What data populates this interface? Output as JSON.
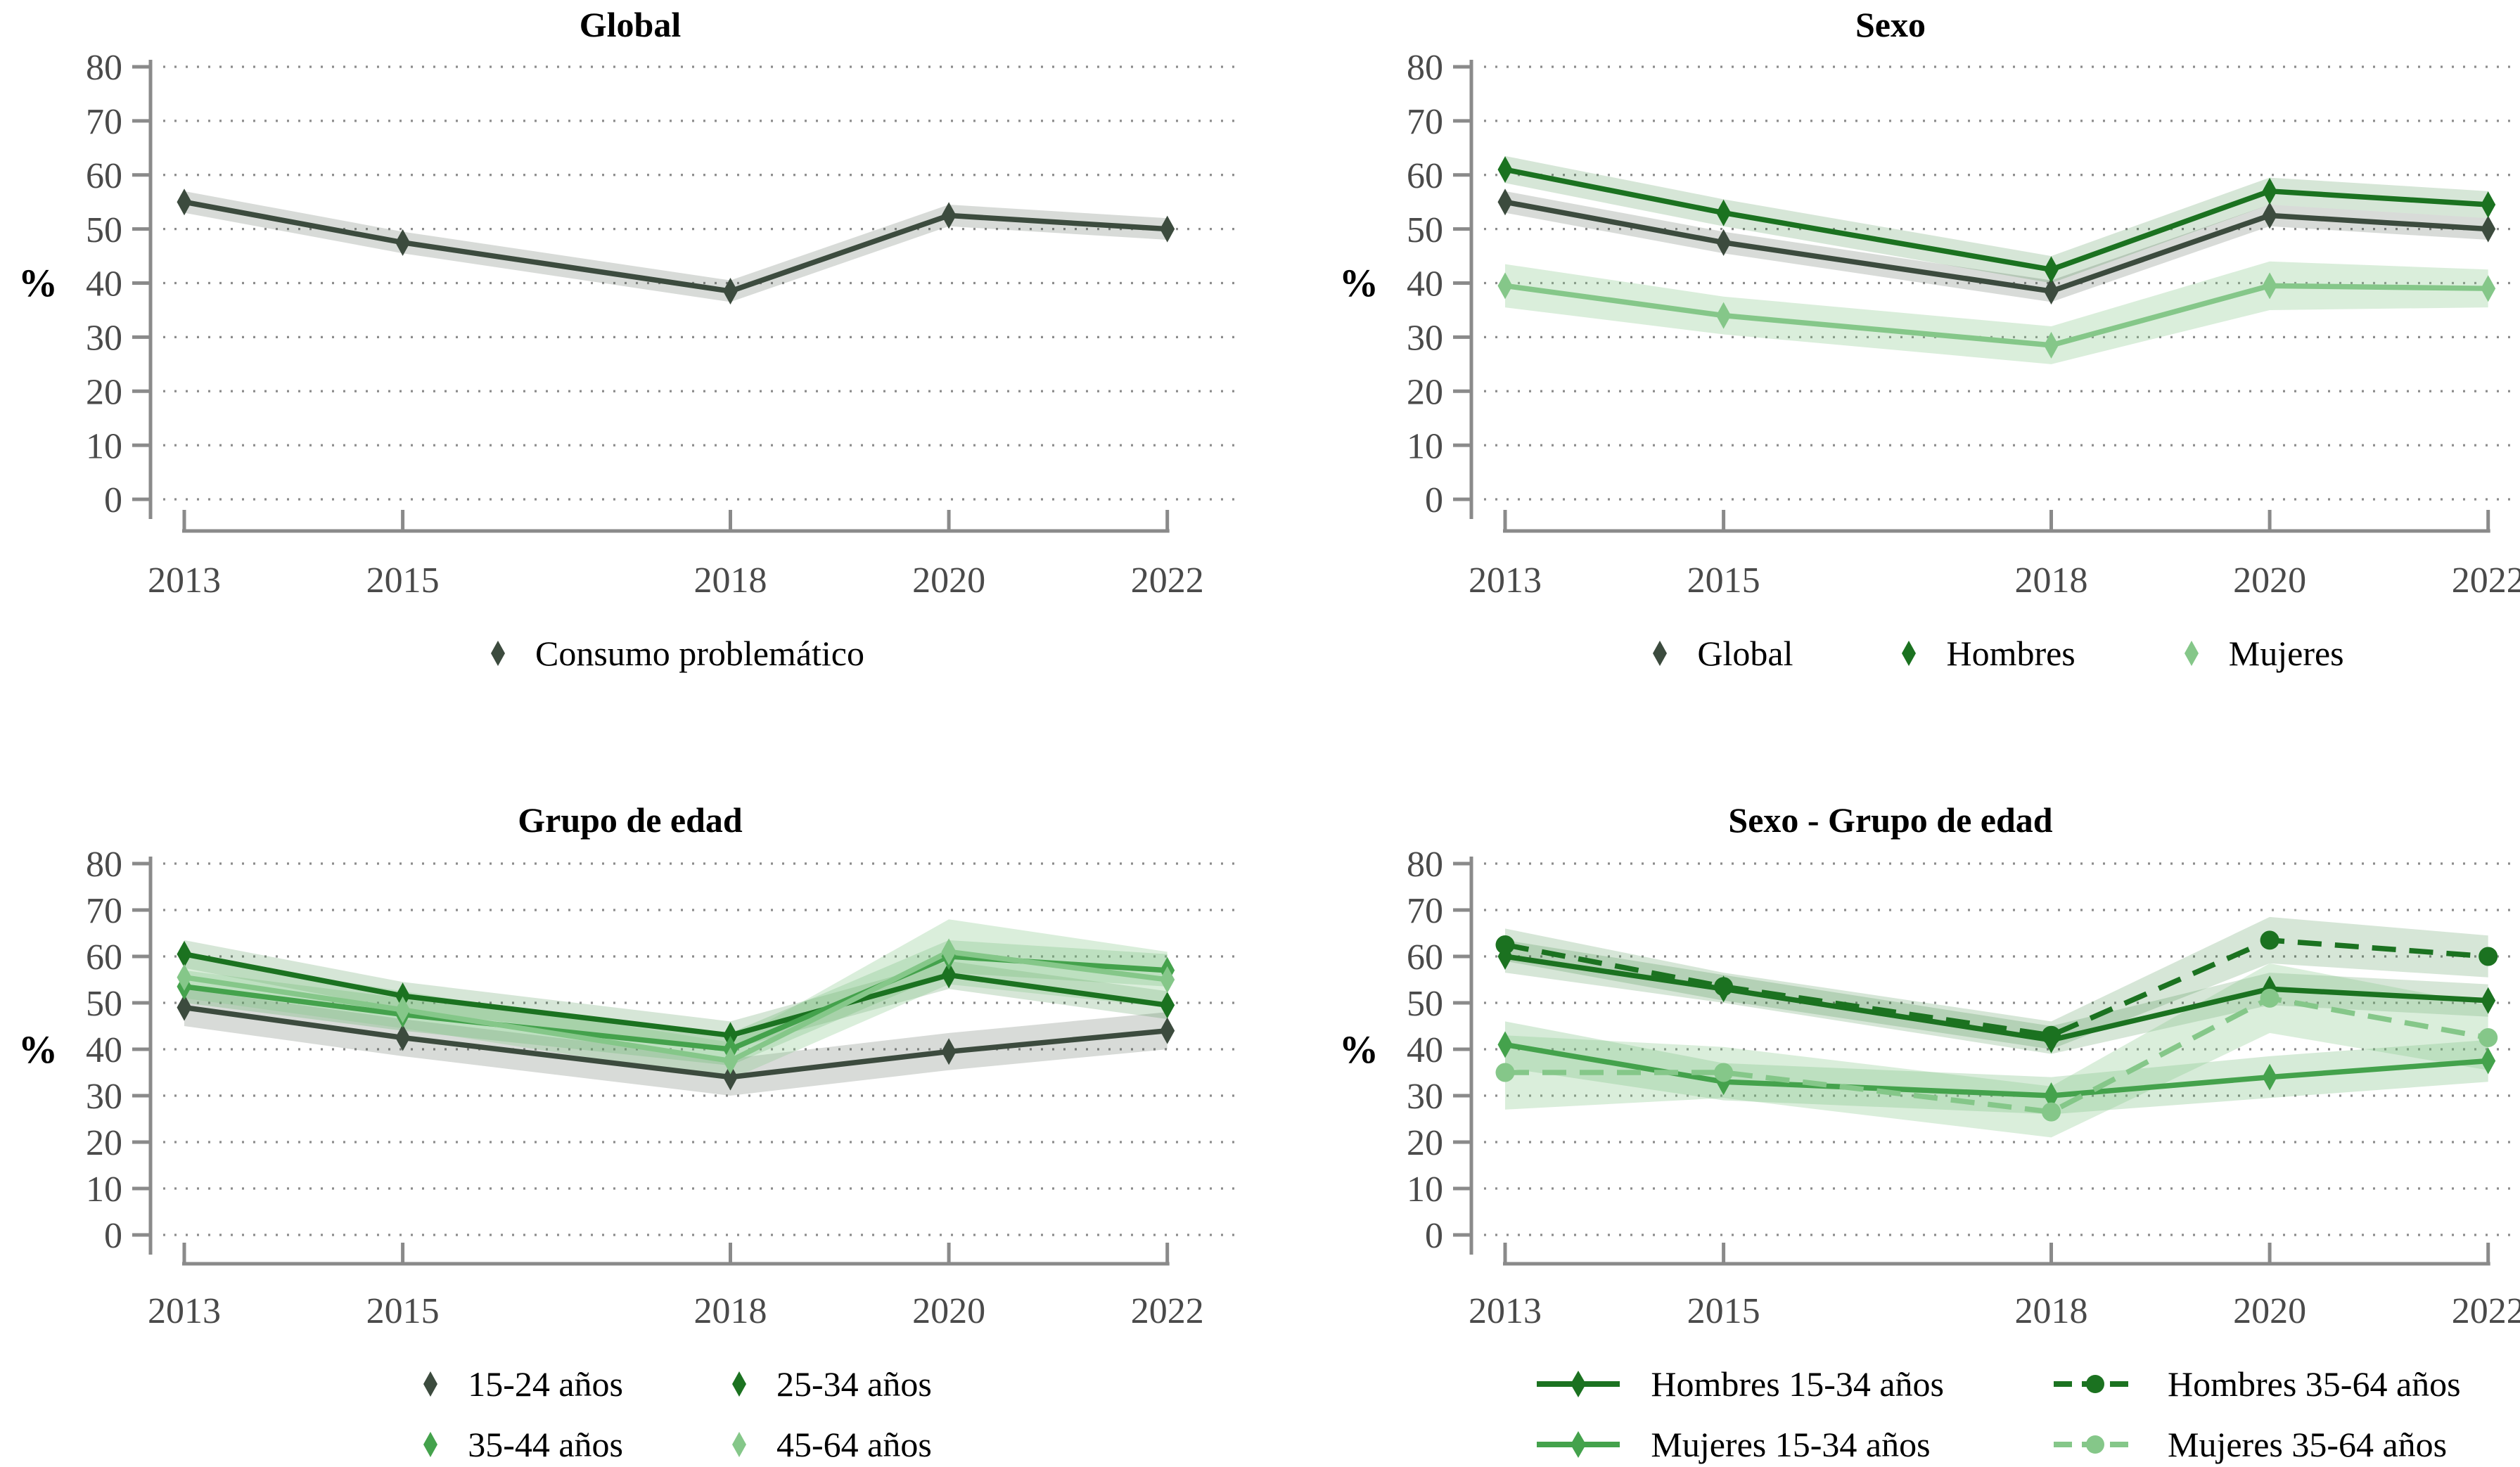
{
  "figure": {
    "background": "#ffffff",
    "description": "2x2 panel of line charts with confidence bands, percent of problematic consumption by year"
  },
  "colors": {
    "axis": "#8a8a8a",
    "grid_dots": "#8c8c8c",
    "tick_label": "#4a4a4a",
    "title_text": "#000000",
    "legend_text": "#000000",
    "dark_gray_green": "#3C4B3E",
    "dark_green": "#1B7220",
    "mid_green": "#44A24C",
    "light_green": "#85C789"
  },
  "axes": {
    "ylabel": "%",
    "ylim": [
      0,
      80
    ],
    "yticks": [
      0,
      10,
      20,
      30,
      40,
      50,
      60,
      70,
      80
    ],
    "xticks": [
      2013,
      2015,
      2018,
      2020,
      2022
    ],
    "grid": "dotted-horizontal",
    "legend_position": "bottom"
  },
  "chart_data": [
    {
      "type": "line",
      "title": "Global",
      "ylabel": "%",
      "ylim": [
        0,
        80
      ],
      "yticks": [
        0,
        10,
        20,
        30,
        40,
        50,
        60,
        70,
        80
      ],
      "x": [
        2013,
        2015,
        2018,
        2020,
        2022
      ],
      "grid": "dotted-horizontal",
      "legend_position": "bottom",
      "legend_columns": 1,
      "series": [
        {
          "name": "Consumo problemático",
          "color": "#3C4B3E",
          "band_color": "rgba(60,75,62,0.20)",
          "line_style": "solid",
          "marker": "diamond",
          "values": [
            55,
            47.5,
            38.5,
            52.5,
            50
          ],
          "ci_lower": [
            53,
            45.5,
            36.5,
            50.5,
            48
          ],
          "ci_upper": [
            57,
            49.5,
            40.5,
            54.5,
            52
          ]
        }
      ]
    },
    {
      "type": "line",
      "title": "Sexo",
      "ylabel": "%",
      "ylim": [
        0,
        80
      ],
      "yticks": [
        0,
        10,
        20,
        30,
        40,
        50,
        60,
        70,
        80
      ],
      "x": [
        2013,
        2015,
        2018,
        2020,
        2022
      ],
      "grid": "dotted-horizontal",
      "legend_position": "bottom",
      "legend_columns": 3,
      "series": [
        {
          "name": "Global",
          "color": "#3C4B3E",
          "band_color": "rgba(60,75,62,0.20)",
          "line_style": "solid",
          "marker": "diamond",
          "values": [
            55,
            47.5,
            38.5,
            52.5,
            50
          ],
          "ci_lower": [
            53,
            45.5,
            36.5,
            50.5,
            48
          ],
          "ci_upper": [
            57,
            49.5,
            40.5,
            54.5,
            52
          ]
        },
        {
          "name": "Hombres",
          "color": "#1B7220",
          "band_color": "rgba(27,114,32,0.18)",
          "line_style": "solid",
          "marker": "diamond",
          "values": [
            61,
            53,
            42.5,
            57,
            54.5
          ],
          "ci_lower": [
            58.5,
            50.5,
            40,
            54.5,
            52
          ],
          "ci_upper": [
            63.5,
            55.5,
            45,
            59.5,
            57
          ]
        },
        {
          "name": "Mujeres",
          "color": "#85C789",
          "band_color": "rgba(133,199,137,0.30)",
          "line_style": "solid",
          "marker": "diamond",
          "values": [
            39.5,
            34,
            28.5,
            39.5,
            39
          ],
          "ci_lower": [
            35.5,
            30.5,
            25,
            35,
            35.5
          ],
          "ci_upper": [
            43.5,
            37.5,
            32,
            44,
            42.5
          ]
        }
      ]
    },
    {
      "type": "line",
      "title": "Grupo de edad",
      "ylabel": "%",
      "ylim": [
        0,
        80
      ],
      "yticks": [
        0,
        10,
        20,
        30,
        40,
        50,
        60,
        70,
        80
      ],
      "x": [
        2013,
        2015,
        2018,
        2020,
        2022
      ],
      "grid": "dotted-horizontal",
      "legend_position": "bottom",
      "legend_columns": 2,
      "series": [
        {
          "name": "15-24 años",
          "color": "#3C4B3E",
          "band_color": "rgba(60,75,62,0.20)",
          "line_style": "solid",
          "marker": "diamond",
          "values": [
            49,
            42.5,
            34,
            39.5,
            44
          ],
          "ci_lower": [
            45,
            38.5,
            30,
            35.5,
            40
          ],
          "ci_upper": [
            53,
            46.5,
            38,
            43.5,
            48
          ]
        },
        {
          "name": "25-34 años",
          "color": "#1B7220",
          "band_color": "rgba(27,114,32,0.18)",
          "line_style": "solid",
          "marker": "diamond",
          "values": [
            60.5,
            51.5,
            43,
            56,
            49.5
          ],
          "ci_lower": [
            57.5,
            48.5,
            40,
            53,
            46.5
          ],
          "ci_upper": [
            63.5,
            54.5,
            46,
            59,
            52.5
          ]
        },
        {
          "name": "35-44 años",
          "color": "#44A24C",
          "band_color": "rgba(68,162,76,0.22)",
          "line_style": "solid",
          "marker": "diamond",
          "values": [
            53.5,
            47.5,
            40,
            60,
            57
          ],
          "ci_lower": [
            50,
            44,
            36.5,
            56.5,
            53.5
          ],
          "ci_upper": [
            57,
            51,
            43.5,
            63.5,
            60.5
          ]
        },
        {
          "name": "45-64 años",
          "color": "#85C789",
          "band_color": "rgba(133,199,137,0.30)",
          "line_style": "solid",
          "marker": "diamond",
          "values": [
            55.5,
            48.5,
            37.5,
            61,
            55
          ],
          "ci_lower": [
            51,
            44.5,
            33.5,
            54,
            49
          ],
          "ci_upper": [
            60,
            52.5,
            41.5,
            68,
            61
          ]
        }
      ]
    },
    {
      "type": "line",
      "title": "Sexo - Grupo de edad",
      "ylabel": "%",
      "ylim": [
        0,
        80
      ],
      "yticks": [
        0,
        10,
        20,
        30,
        40,
        50,
        60,
        70,
        80
      ],
      "x": [
        2013,
        2015,
        2018,
        2020,
        2022
      ],
      "grid": "dotted-horizontal",
      "legend_position": "bottom",
      "legend_columns": 2,
      "series": [
        {
          "name": "Hombres 15-34 años",
          "color": "#1B7220",
          "band_color": "rgba(27,114,32,0.18)",
          "line_style": "solid",
          "marker": "diamond",
          "values": [
            60,
            53,
            42,
            53,
            50.5
          ],
          "ci_lower": [
            56.5,
            50,
            39,
            49.5,
            47
          ],
          "ci_upper": [
            63.5,
            56,
            45,
            56.5,
            54
          ]
        },
        {
          "name": "Hombres 35-64 años",
          "color": "#1B7220",
          "band_color": "rgba(27,114,32,0.18)",
          "line_style": "dashed",
          "marker": "circle",
          "values": [
            62.5,
            53.5,
            43,
            63.5,
            60
          ],
          "ci_lower": [
            59,
            50.5,
            40,
            58.5,
            55.5
          ],
          "ci_upper": [
            66,
            56.5,
            46,
            68.5,
            64.5
          ]
        },
        {
          "name": "Mujeres 15-34 años",
          "color": "#44A24C",
          "band_color": "rgba(68,162,76,0.22)",
          "line_style": "solid",
          "marker": "diamond",
          "values": [
            41,
            33,
            30,
            34,
            37.5
          ],
          "ci_lower": [
            36,
            29,
            26,
            29.5,
            33
          ],
          "ci_upper": [
            46,
            37,
            34,
            38.5,
            42
          ]
        },
        {
          "name": "Mujeres 35-64 años",
          "color": "#85C789",
          "band_color": "rgba(133,199,137,0.30)",
          "line_style": "dashed",
          "marker": "circle",
          "values": [
            35,
            35,
            26.5,
            51,
            42.5
          ],
          "ci_lower": [
            27,
            29.5,
            21,
            43.5,
            35.5
          ],
          "ci_upper": [
            43,
            40.5,
            32,
            58.5,
            49.5
          ]
        }
      ]
    }
  ]
}
